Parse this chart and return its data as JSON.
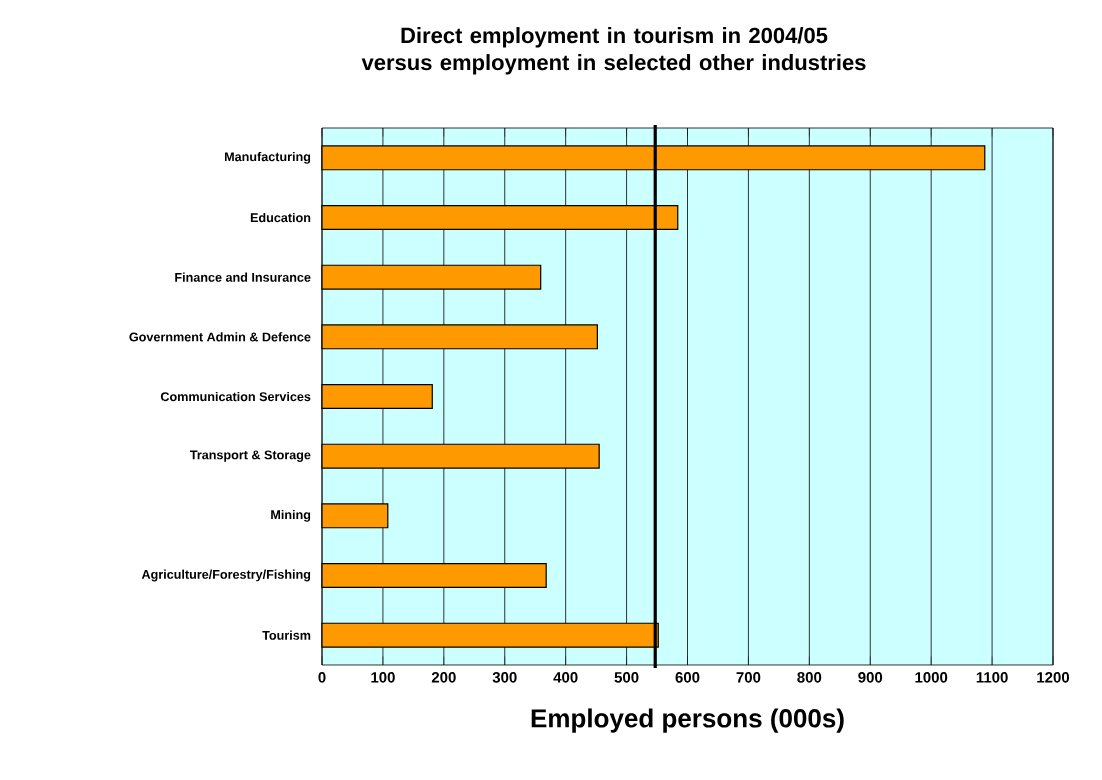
{
  "chart_data": {
    "type": "bar",
    "orientation": "horizontal",
    "title": "Direct employment in tourism in 2004/05 versus employment in selected other industries",
    "xlabel": "Employed persons (000s)",
    "categories": [
      "Manufacturing",
      "Education",
      "Finance and Insurance",
      "Government Admin & Defence",
      "Communication Services",
      "Transport & Storage",
      "Mining",
      "Agriculture/Forestry/Fishing",
      "Tourism"
    ],
    "values": [
      1088,
      584,
      359,
      452,
      181,
      455,
      108,
      368,
      552
    ],
    "color": "#ff9900",
    "xlim": [
      0,
      1200
    ],
    "xticks": [
      0,
      100,
      200,
      300,
      400,
      500,
      600,
      700,
      800,
      900,
      1000,
      1100,
      1200
    ],
    "grid": "x",
    "ref_lines": [
      {
        "axis": "x",
        "value": 547,
        "color": "#000000"
      }
    ]
  }
}
